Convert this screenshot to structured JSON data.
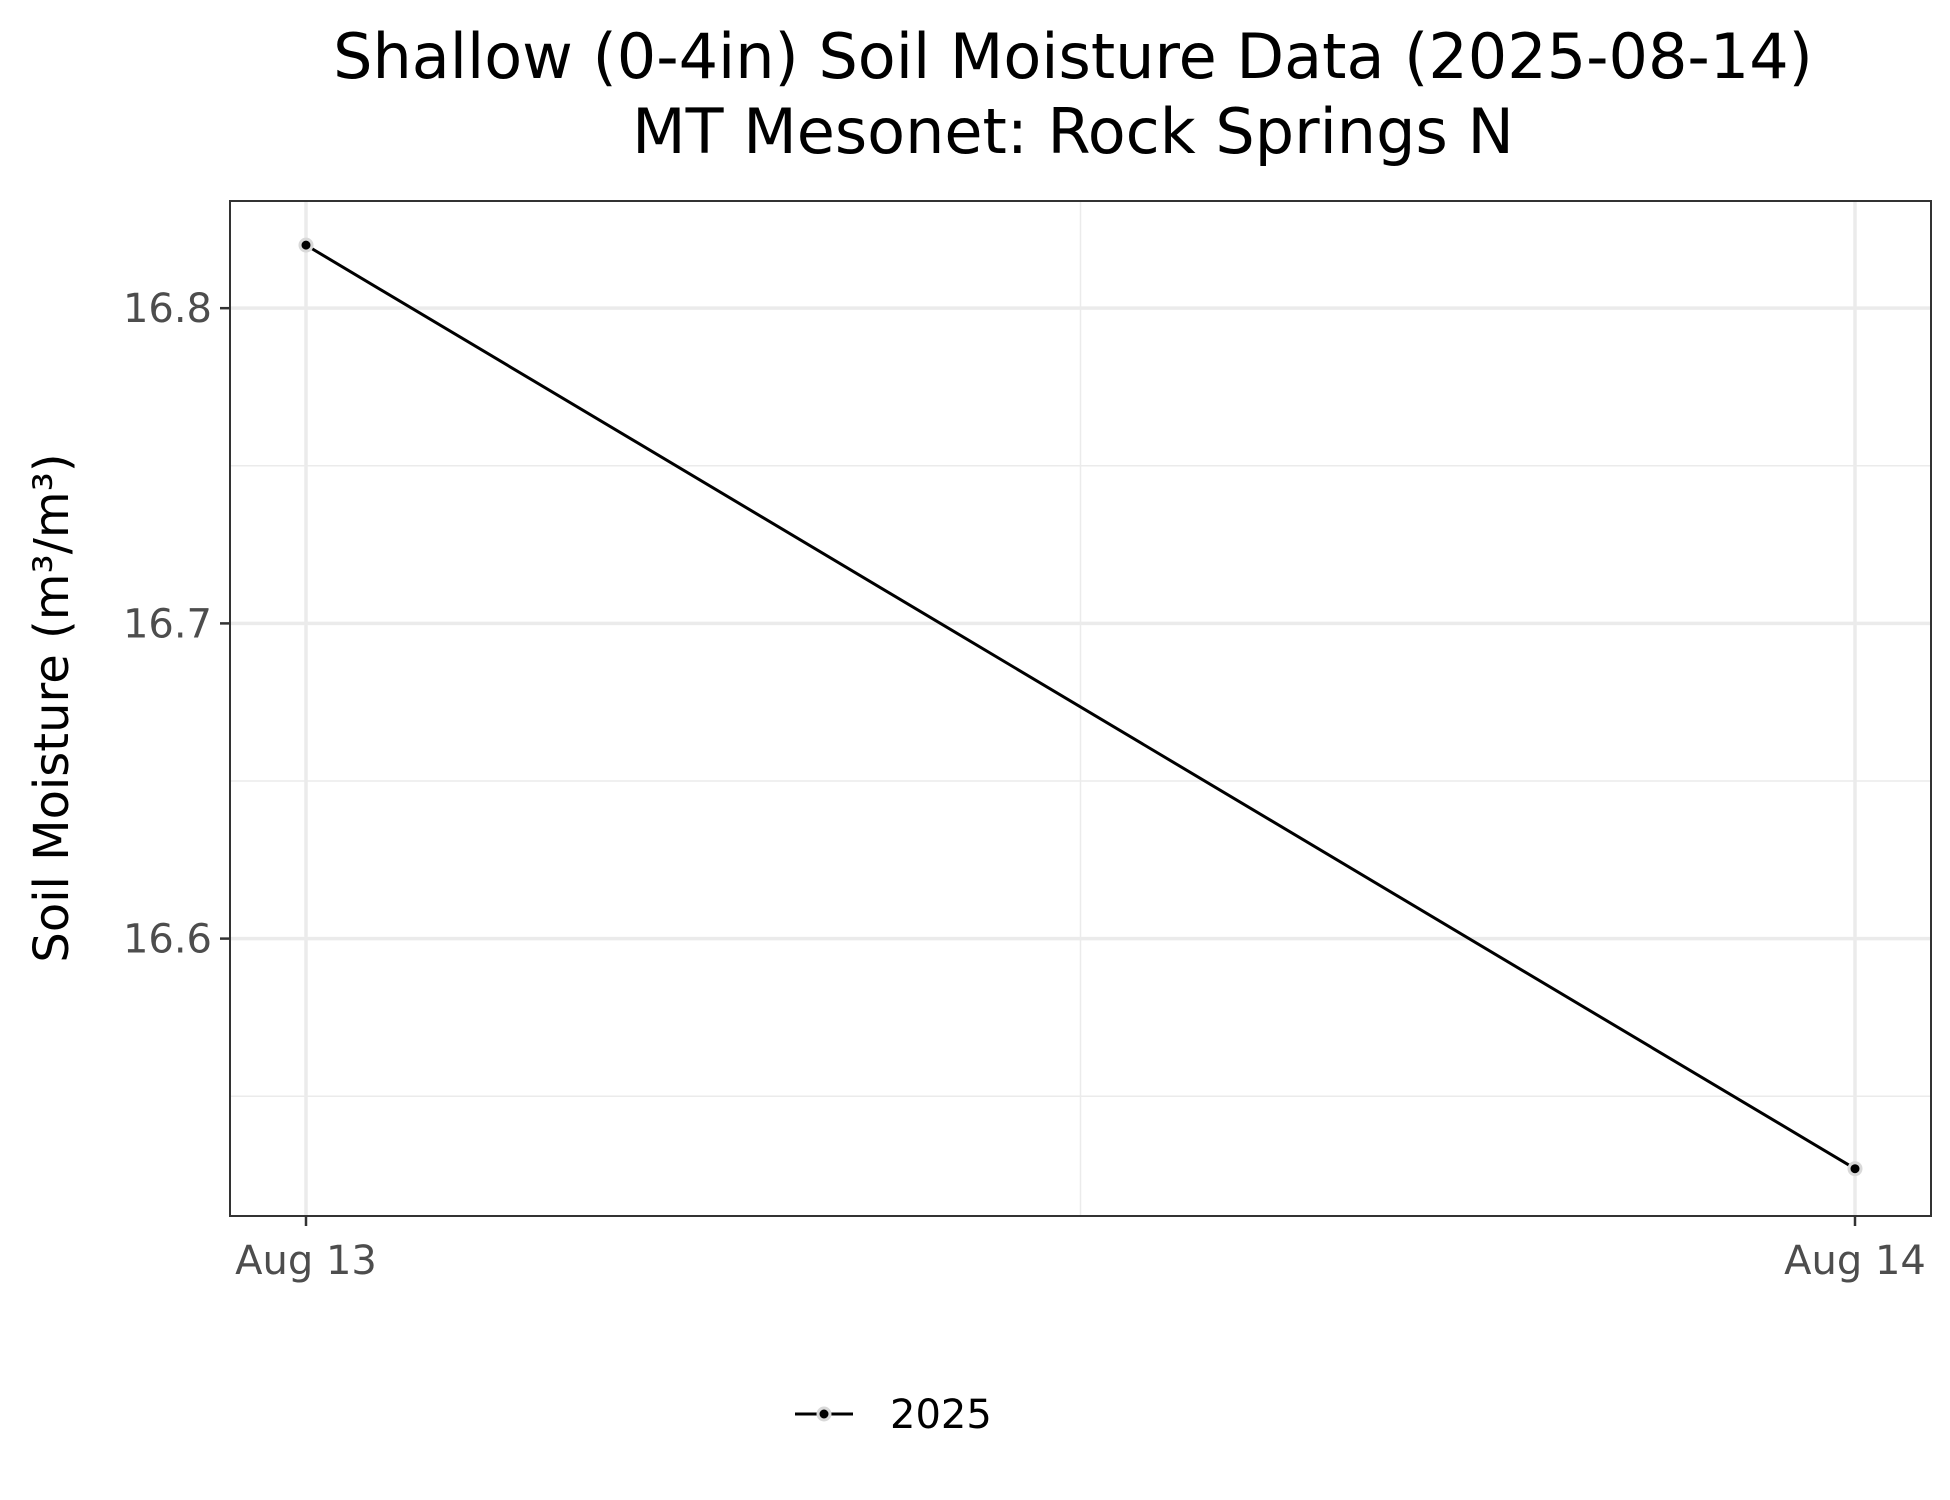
{
  "chart_data": {
    "type": "line",
    "title": "Shallow (0-4in) Soil Moisture Data (2025-08-14)",
    "subtitle": "MT Mesonet: Rock Springs N",
    "xlabel": "",
    "ylabel": "Soil Moisture (m³/m³)",
    "x": [
      "2025-08-13",
      "2025-08-14"
    ],
    "x_tick_labels": [
      "Aug 13",
      "Aug 14"
    ],
    "y_ticks": [
      16.6,
      16.7,
      16.8
    ],
    "y_tick_labels": [
      "16.6",
      "16.7",
      "16.8"
    ],
    "ylim": [
      16.512,
      16.834
    ],
    "grid": true,
    "legend_position": "bottom",
    "series": [
      {
        "name": "2025",
        "values": [
          16.82,
          16.527
        ],
        "color": "#000000"
      }
    ]
  }
}
